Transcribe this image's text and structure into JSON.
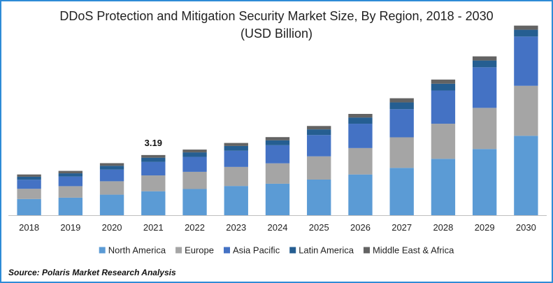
{
  "chart_data": {
    "type": "bar",
    "stacked": true,
    "title": "DDoS Protection and Mitigation Security Market Size, By Region, 2018 - 2030",
    "subtitle": "(USD Billion)",
    "xlabel": "",
    "ylabel": "",
    "ylim": [
      0,
      10
    ],
    "grid": false,
    "legend_position": "bottom",
    "categories": [
      "2018",
      "2019",
      "2020",
      "2021",
      "2022",
      "2023",
      "2024",
      "2025",
      "2026",
      "2027",
      "2028",
      "2029",
      "2030"
    ],
    "series": [
      {
        "name": "North America",
        "color": "#5b9bd5",
        "values": [
          0.86,
          0.93,
          1.09,
          1.27,
          1.39,
          1.55,
          1.67,
          1.89,
          2.16,
          2.51,
          2.99,
          3.51,
          4.21
        ]
      },
      {
        "name": "Europe",
        "color": "#a5a5a5",
        "values": [
          0.54,
          0.61,
          0.71,
          0.84,
          0.91,
          1.01,
          1.08,
          1.23,
          1.4,
          1.62,
          1.86,
          2.18,
          2.65
        ]
      },
      {
        "name": "Asia Pacific",
        "color": "#4472c4",
        "values": [
          0.48,
          0.51,
          0.62,
          0.72,
          0.79,
          0.86,
          0.96,
          1.13,
          1.29,
          1.49,
          1.76,
          2.15,
          2.61
        ]
      },
      {
        "name": "Latin America",
        "color": "#255e91",
        "values": [
          0.16,
          0.17,
          0.2,
          0.22,
          0.24,
          0.25,
          0.26,
          0.3,
          0.33,
          0.36,
          0.36,
          0.36,
          0.36
        ]
      },
      {
        "name": "Middle East & Africa",
        "color": "#636363",
        "values": [
          0.12,
          0.13,
          0.14,
          0.14,
          0.15,
          0.16,
          0.17,
          0.18,
          0.19,
          0.22,
          0.22,
          0.22,
          0.22
        ]
      }
    ],
    "annotations": [
      {
        "category": "2021",
        "text": "3.19"
      }
    ]
  },
  "source": "Source: Polaris  Market Research Analysis"
}
